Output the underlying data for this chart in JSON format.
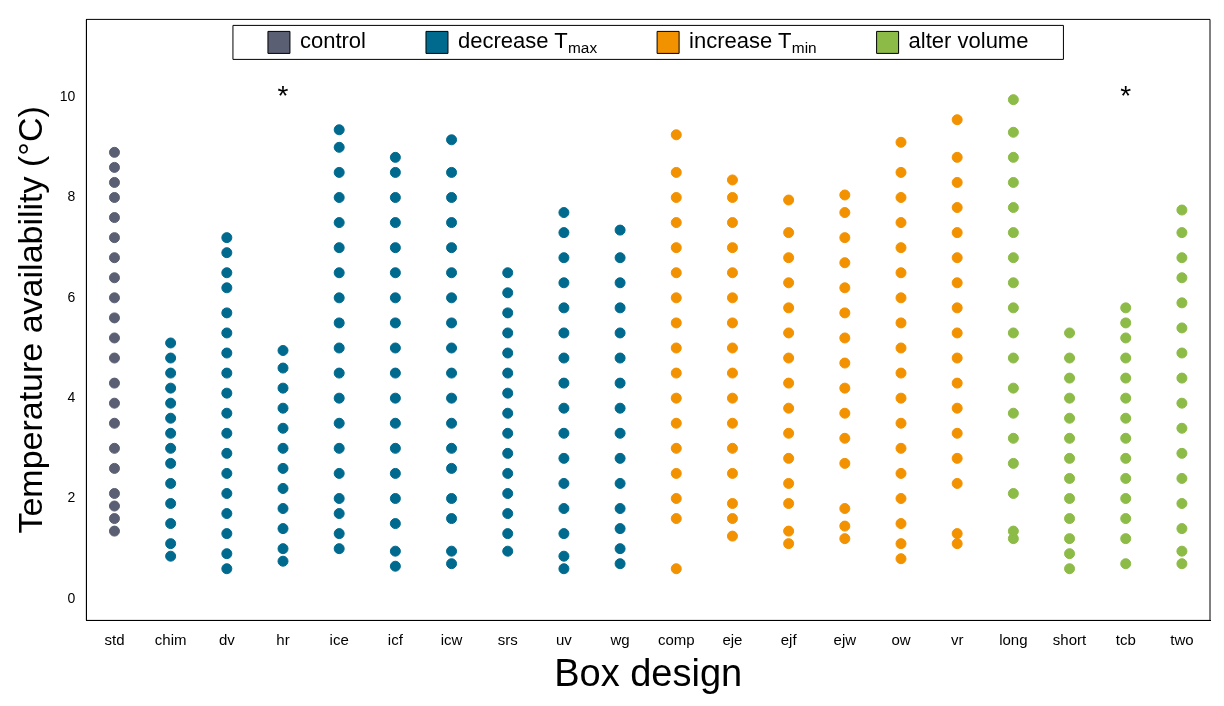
{
  "chart_data": {
    "type": "scatter",
    "xlabel": "Box design",
    "ylabel": "Temperature availability (°C)",
    "categories": [
      "std",
      "chim",
      "dv",
      "hr",
      "ice",
      "icf",
      "icw",
      "srs",
      "uv",
      "wg",
      "comp",
      "eje",
      "ejf",
      "ejw",
      "ow",
      "vr",
      "long",
      "short",
      "tcb",
      "two"
    ],
    "ylim": [
      -0.43,
      11.55
    ],
    "yticks": [
      0,
      2,
      4,
      6,
      8,
      10
    ],
    "grid": false,
    "legend": "top",
    "marker": "circle",
    "annotations": [
      "*",
      "*"
    ],
    "series": [
      {
        "name": "control",
        "color": "#5a5f73",
        "x": [
          "std",
          "std",
          "std",
          "std",
          "std",
          "std",
          "std",
          "std",
          "std",
          "std",
          "std",
          "std",
          "std",
          "std",
          "std",
          "std",
          "std",
          "std",
          "std",
          "std",
          "std"
        ],
        "values": [
          1.35,
          1.6,
          1.85,
          2.1,
          2.6,
          3.0,
          3.5,
          3.9,
          4.3,
          4.8,
          5.2,
          5.6,
          6.0,
          6.4,
          6.8,
          7.2,
          7.6,
          8.0,
          8.3,
          8.6,
          8.9
        ]
      },
      {
        "name": "decrease T$_{max}$",
        "color": "#006a8e",
        "x": [
          "chim",
          "chim",
          "chim",
          "chim",
          "chim",
          "chim",
          "chim",
          "chim",
          "chim",
          "chim",
          "chim",
          "chim",
          "chim",
          "chim",
          "dv",
          "dv",
          "dv",
          "dv",
          "dv",
          "dv",
          "dv",
          "dv",
          "dv",
          "dv",
          "dv",
          "dv",
          "dv",
          "dv",
          "dv",
          "dv",
          "dv",
          "dv",
          "hr",
          "hr",
          "hr",
          "hr",
          "hr",
          "hr",
          "hr",
          "hr",
          "hr",
          "hr",
          "hr",
          "hr",
          "ice",
          "ice",
          "ice",
          "ice",
          "ice",
          "ice",
          "ice",
          "ice",
          "ice",
          "ice",
          "ice",
          "ice",
          "ice",
          "ice",
          "ice",
          "ice",
          "ice",
          "ice",
          "ice",
          "icf",
          "icf",
          "icf",
          "icf",
          "icf",
          "icf",
          "icf",
          "icf",
          "icf",
          "icf",
          "icf",
          "icf",
          "icf",
          "icf",
          "icf",
          "icf",
          "icf",
          "icf",
          "icw",
          "icw",
          "icw",
          "icw",
          "icw",
          "icw",
          "icw",
          "icw",
          "icw",
          "icw",
          "icw",
          "icw",
          "icw",
          "icw",
          "icw",
          "icw",
          "icw",
          "icw",
          "srs",
          "srs",
          "srs",
          "srs",
          "srs",
          "srs",
          "srs",
          "srs",
          "srs",
          "srs",
          "srs",
          "srs",
          "srs",
          "srs",
          "srs",
          "uv",
          "uv",
          "uv",
          "uv",
          "uv",
          "uv",
          "uv",
          "uv",
          "uv",
          "uv",
          "uv",
          "uv",
          "uv",
          "uv",
          "uv",
          "uv",
          "wg",
          "wg",
          "wg",
          "wg",
          "wg",
          "wg",
          "wg",
          "wg",
          "wg",
          "wg",
          "wg",
          "wg",
          "wg",
          "wg",
          "wg"
        ],
        "values": [
          0.85,
          1.1,
          1.5,
          1.9,
          2.3,
          2.7,
          3.0,
          3.3,
          3.6,
          3.9,
          4.2,
          4.5,
          4.8,
          5.1,
          0.6,
          0.9,
          1.3,
          1.7,
          2.1,
          2.5,
          2.9,
          3.3,
          3.7,
          4.1,
          4.5,
          4.9,
          5.3,
          5.7,
          6.2,
          6.5,
          6.9,
          7.2,
          0.75,
          1.0,
          1.4,
          1.8,
          2.2,
          2.6,
          3.0,
          3.4,
          3.8,
          4.2,
          4.6,
          4.95,
          1.0,
          1.3,
          1.7,
          2.0,
          2.5,
          3.0,
          3.5,
          4.0,
          4.5,
          5.0,
          5.5,
          6.0,
          6.5,
          7.0,
          7.5,
          8.0,
          8.5,
          9.0,
          9.35,
          0.65,
          0.95,
          1.5,
          2.0,
          2.5,
          3.0,
          3.5,
          4.0,
          4.5,
          5.0,
          5.5,
          6.0,
          6.5,
          7.0,
          7.5,
          8.0,
          8.5,
          8.8,
          0.7,
          0.95,
          1.6,
          2.0,
          2.6,
          3.0,
          3.5,
          4.0,
          4.5,
          5.0,
          5.5,
          6.0,
          6.5,
          7.0,
          7.5,
          8.0,
          8.5,
          9.15,
          0.95,
          1.3,
          1.7,
          2.1,
          2.5,
          2.9,
          3.3,
          3.7,
          4.1,
          4.5,
          4.9,
          5.3,
          5.7,
          6.1,
          6.5,
          0.6,
          0.85,
          1.3,
          1.8,
          2.3,
          2.8,
          3.3,
          3.8,
          4.3,
          4.8,
          5.3,
          5.8,
          6.3,
          6.8,
          7.3,
          7.7,
          0.7,
          1.0,
          1.4,
          1.8,
          2.3,
          2.8,
          3.3,
          3.8,
          4.3,
          4.8,
          5.3,
          5.8,
          6.3,
          6.8,
          7.35
        ]
      },
      {
        "name": "increase T$_{min}$",
        "color": "#f39200",
        "x": [
          "comp",
          "comp",
          "comp",
          "comp",
          "comp",
          "comp",
          "comp",
          "comp",
          "comp",
          "comp",
          "comp",
          "comp",
          "comp",
          "comp",
          "comp",
          "comp",
          "comp",
          "eje",
          "eje",
          "eje",
          "eje",
          "eje",
          "eje",
          "eje",
          "eje",
          "eje",
          "eje",
          "eje",
          "eje",
          "eje",
          "eje",
          "eje",
          "eje",
          "ejf",
          "ejf",
          "ejf",
          "ejf",
          "ejf",
          "ejf",
          "ejf",
          "ejf",
          "ejf",
          "ejf",
          "ejf",
          "ejf",
          "ejf",
          "ejf",
          "ejf",
          "ejw",
          "ejw",
          "ejw",
          "ejw",
          "ejw",
          "ejw",
          "ejw",
          "ejw",
          "ejw",
          "ejw",
          "ejw",
          "ejw",
          "ejw",
          "ejw",
          "ejw",
          "ow",
          "ow",
          "ow",
          "ow",
          "ow",
          "ow",
          "ow",
          "ow",
          "ow",
          "ow",
          "ow",
          "ow",
          "ow",
          "ow",
          "ow",
          "ow",
          "ow",
          "ow",
          "vr",
          "vr",
          "vr",
          "vr",
          "vr",
          "vr",
          "vr",
          "vr",
          "vr",
          "vr",
          "vr",
          "vr",
          "vr",
          "vr",
          "vr",
          "vr",
          "vr"
        ],
        "values": [
          0.6,
          1.6,
          2.0,
          2.5,
          3.0,
          3.5,
          4.0,
          4.5,
          5.0,
          5.5,
          6.0,
          6.5,
          7.0,
          7.5,
          8.0,
          8.5,
          9.25,
          1.25,
          1.6,
          1.9,
          2.5,
          3.0,
          3.5,
          4.0,
          4.5,
          5.0,
          5.5,
          6.0,
          6.5,
          7.0,
          7.5,
          8.0,
          8.35,
          1.1,
          1.35,
          1.9,
          2.3,
          2.8,
          3.3,
          3.8,
          4.3,
          4.8,
          5.3,
          5.8,
          6.3,
          6.8,
          7.3,
          7.95,
          1.2,
          1.45,
          1.8,
          2.7,
          3.2,
          3.7,
          4.2,
          4.7,
          5.2,
          5.7,
          6.2,
          6.7,
          7.2,
          7.7,
          8.05,
          0.8,
          1.1,
          1.5,
          2.0,
          2.5,
          3.0,
          3.5,
          4.0,
          4.5,
          5.0,
          5.5,
          6.0,
          6.5,
          7.0,
          7.5,
          8.0,
          8.5,
          9.1,
          1.1,
          1.3,
          2.3,
          2.8,
          3.3,
          3.8,
          4.3,
          4.8,
          5.3,
          5.8,
          6.3,
          6.8,
          7.3,
          7.8,
          8.3,
          8.8,
          9.55
        ]
      },
      {
        "name": "alter volume",
        "color": "#8dbb48",
        "x": [
          "long",
          "long",
          "long",
          "long",
          "long",
          "long",
          "long",
          "long",
          "long",
          "long",
          "long",
          "long",
          "long",
          "long",
          "long",
          "long",
          "long",
          "long",
          "short",
          "short",
          "short",
          "short",
          "short",
          "short",
          "short",
          "short",
          "short",
          "short",
          "short",
          "short",
          "short",
          "tcb",
          "tcb",
          "tcb",
          "tcb",
          "tcb",
          "tcb",
          "tcb",
          "tcb",
          "tcb",
          "tcb",
          "tcb",
          "tcb",
          "tcb",
          "tcb",
          "two",
          "two",
          "two",
          "two",
          "two",
          "two",
          "two",
          "two",
          "two",
          "two",
          "two",
          "two",
          "two",
          "two",
          "two",
          "two"
        ],
        "values": [
          1.2,
          1.35,
          2.1,
          2.7,
          3.2,
          3.7,
          4.2,
          4.8,
          5.3,
          5.8,
          6.3,
          6.8,
          7.3,
          7.8,
          8.3,
          8.8,
          9.3,
          9.95,
          0.6,
          0.9,
          1.2,
          1.6,
          2.0,
          2.4,
          2.8,
          3.2,
          3.6,
          4.0,
          4.4,
          4.8,
          5.3,
          0.7,
          1.2,
          1.6,
          2.0,
          2.4,
          2.8,
          3.2,
          3.6,
          4.0,
          4.4,
          4.8,
          5.2,
          5.5,
          5.8,
          0.7,
          0.95,
          1.4,
          1.9,
          2.4,
          2.9,
          3.4,
          3.9,
          4.4,
          4.9,
          5.4,
          5.9,
          6.4,
          6.8,
          7.3,
          7.75
        ]
      }
    ]
  }
}
